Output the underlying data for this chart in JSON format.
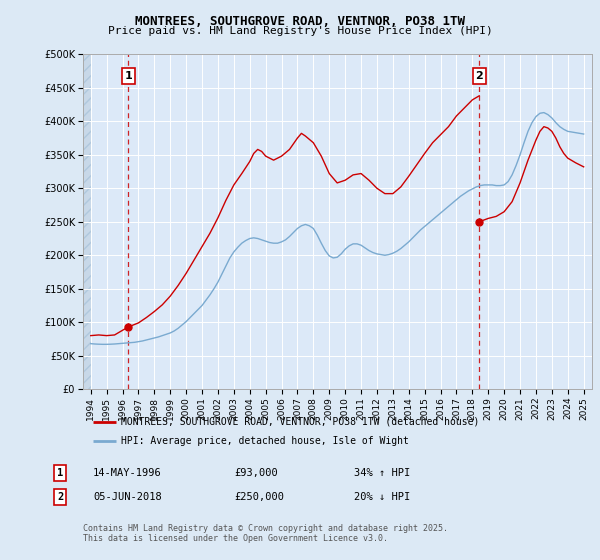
{
  "title1": "MONTREES, SOUTHGROVE ROAD, VENTNOR, PO38 1TW",
  "title2": "Price paid vs. HM Land Registry's House Price Index (HPI)",
  "legend1": "MONTREES, SOUTHGROVE ROAD, VENTNOR, PO38 1TW (detached house)",
  "legend2": "HPI: Average price, detached house, Isle of Wight",
  "footnote": "Contains HM Land Registry data © Crown copyright and database right 2025.\nThis data is licensed under the Open Government Licence v3.0.",
  "sale1_date": "14-MAY-1996",
  "sale1_price": "£93,000",
  "sale1_hpi": "34% ↑ HPI",
  "sale2_date": "05-JUN-2018",
  "sale2_price": "£250,000",
  "sale2_hpi": "20% ↓ HPI",
  "sale1_x": 1996.37,
  "sale1_y": 93000,
  "sale2_x": 2018.43,
  "sale2_y": 250000,
  "xmin": 1993.5,
  "xmax": 2025.5,
  "ymin": 0,
  "ymax": 500000,
  "yticks": [
    0,
    50000,
    100000,
    150000,
    200000,
    250000,
    300000,
    350000,
    400000,
    450000,
    500000
  ],
  "ytick_labels": [
    "£0",
    "£50K",
    "£100K",
    "£150K",
    "£200K",
    "£250K",
    "£300K",
    "£350K",
    "£400K",
    "£450K",
    "£500K"
  ],
  "bg_color": "#dce9f5",
  "plot_bg_color": "#dce9f8",
  "hatch_color": "#c0d4e8",
  "red_color": "#cc0000",
  "blue_color": "#7aaad0",
  "grid_color": "#ffffff",
  "hpi_data": [
    [
      1994.0,
      68000
    ],
    [
      1994.25,
      67500
    ],
    [
      1994.5,
      67200
    ],
    [
      1994.75,
      67000
    ],
    [
      1995.0,
      67000
    ],
    [
      1995.25,
      67200
    ],
    [
      1995.5,
      67500
    ],
    [
      1995.75,
      68000
    ],
    [
      1996.0,
      68500
    ],
    [
      1996.25,
      69000
    ],
    [
      1996.5,
      69500
    ],
    [
      1996.75,
      70000
    ],
    [
      1997.0,
      71000
    ],
    [
      1997.25,
      72000
    ],
    [
      1997.5,
      73500
    ],
    [
      1997.75,
      75000
    ],
    [
      1998.0,
      76500
    ],
    [
      1998.25,
      78000
    ],
    [
      1998.5,
      80000
    ],
    [
      1998.75,
      82000
    ],
    [
      1999.0,
      84000
    ],
    [
      1999.25,
      87000
    ],
    [
      1999.5,
      91000
    ],
    [
      1999.75,
      96000
    ],
    [
      2000.0,
      101000
    ],
    [
      2000.25,
      107000
    ],
    [
      2000.5,
      113000
    ],
    [
      2000.75,
      119000
    ],
    [
      2001.0,
      125000
    ],
    [
      2001.25,
      133000
    ],
    [
      2001.5,
      141000
    ],
    [
      2001.75,
      150000
    ],
    [
      2002.0,
      160000
    ],
    [
      2002.25,
      172000
    ],
    [
      2002.5,
      184000
    ],
    [
      2002.75,
      196000
    ],
    [
      2003.0,
      205000
    ],
    [
      2003.25,
      212000
    ],
    [
      2003.5,
      218000
    ],
    [
      2003.75,
      222000
    ],
    [
      2004.0,
      225000
    ],
    [
      2004.25,
      226000
    ],
    [
      2004.5,
      225000
    ],
    [
      2004.75,
      223000
    ],
    [
      2005.0,
      221000
    ],
    [
      2005.25,
      219000
    ],
    [
      2005.5,
      218000
    ],
    [
      2005.75,
      218000
    ],
    [
      2006.0,
      220000
    ],
    [
      2006.25,
      223000
    ],
    [
      2006.5,
      228000
    ],
    [
      2006.75,
      234000
    ],
    [
      2007.0,
      240000
    ],
    [
      2007.25,
      244000
    ],
    [
      2007.5,
      246000
    ],
    [
      2007.75,
      244000
    ],
    [
      2008.0,
      240000
    ],
    [
      2008.25,
      230000
    ],
    [
      2008.5,
      218000
    ],
    [
      2008.75,
      207000
    ],
    [
      2009.0,
      199000
    ],
    [
      2009.25,
      196000
    ],
    [
      2009.5,
      197000
    ],
    [
      2009.75,
      202000
    ],
    [
      2010.0,
      209000
    ],
    [
      2010.25,
      214000
    ],
    [
      2010.5,
      217000
    ],
    [
      2010.75,
      217000
    ],
    [
      2011.0,
      215000
    ],
    [
      2011.25,
      211000
    ],
    [
      2011.5,
      207000
    ],
    [
      2011.75,
      204000
    ],
    [
      2012.0,
      202000
    ],
    [
      2012.25,
      201000
    ],
    [
      2012.5,
      200000
    ],
    [
      2012.75,
      201000
    ],
    [
      2013.0,
      203000
    ],
    [
      2013.25,
      206000
    ],
    [
      2013.5,
      210000
    ],
    [
      2013.75,
      215000
    ],
    [
      2014.0,
      220000
    ],
    [
      2014.25,
      226000
    ],
    [
      2014.5,
      232000
    ],
    [
      2014.75,
      238000
    ],
    [
      2015.0,
      243000
    ],
    [
      2015.25,
      248000
    ],
    [
      2015.5,
      253000
    ],
    [
      2015.75,
      258000
    ],
    [
      2016.0,
      263000
    ],
    [
      2016.25,
      268000
    ],
    [
      2016.5,
      273000
    ],
    [
      2016.75,
      278000
    ],
    [
      2017.0,
      283000
    ],
    [
      2017.25,
      288000
    ],
    [
      2017.5,
      292000
    ],
    [
      2017.75,
      296000
    ],
    [
      2018.0,
      299000
    ],
    [
      2018.25,
      302000
    ],
    [
      2018.5,
      304000
    ],
    [
      2018.75,
      305000
    ],
    [
      2019.0,
      305000
    ],
    [
      2019.25,
      305000
    ],
    [
      2019.5,
      304000
    ],
    [
      2019.75,
      304000
    ],
    [
      2020.0,
      305000
    ],
    [
      2020.25,
      310000
    ],
    [
      2020.5,
      320000
    ],
    [
      2020.75,
      334000
    ],
    [
      2021.0,
      350000
    ],
    [
      2021.25,
      368000
    ],
    [
      2021.5,
      385000
    ],
    [
      2021.75,
      398000
    ],
    [
      2022.0,
      407000
    ],
    [
      2022.25,
      412000
    ],
    [
      2022.5,
      413000
    ],
    [
      2022.75,
      410000
    ],
    [
      2023.0,
      405000
    ],
    [
      2023.25,
      398000
    ],
    [
      2023.5,
      392000
    ],
    [
      2023.75,
      388000
    ],
    [
      2024.0,
      385000
    ],
    [
      2024.25,
      384000
    ],
    [
      2024.5,
      383000
    ],
    [
      2024.75,
      382000
    ],
    [
      2025.0,
      381000
    ]
  ],
  "price_data_seg1": [
    [
      1994.0,
      80000
    ],
    [
      1994.5,
      81000
    ],
    [
      1995.0,
      80000
    ],
    [
      1995.5,
      81000
    ],
    [
      1996.0,
      88000
    ],
    [
      1996.37,
      93000
    ]
  ],
  "price_data_seg2": [
    [
      1996.37,
      93000
    ],
    [
      1997.0,
      99000
    ],
    [
      1997.5,
      107000
    ],
    [
      1998.0,
      116000
    ],
    [
      1998.5,
      126000
    ],
    [
      1999.0,
      139000
    ],
    [
      1999.5,
      155000
    ],
    [
      2000.0,
      173000
    ],
    [
      2000.5,
      193000
    ],
    [
      2001.0,
      213000
    ],
    [
      2001.5,
      233000
    ],
    [
      2002.0,
      256000
    ],
    [
      2002.5,
      282000
    ],
    [
      2003.0,
      305000
    ],
    [
      2003.5,
      322000
    ],
    [
      2004.0,
      340000
    ],
    [
      2004.25,
      352000
    ],
    [
      2004.5,
      358000
    ],
    [
      2004.75,
      355000
    ],
    [
      2005.0,
      348000
    ],
    [
      2005.5,
      342000
    ],
    [
      2006.0,
      348000
    ],
    [
      2006.5,
      358000
    ],
    [
      2007.0,
      375000
    ],
    [
      2007.25,
      382000
    ],
    [
      2007.5,
      378000
    ],
    [
      2008.0,
      368000
    ],
    [
      2008.5,
      348000
    ],
    [
      2009.0,
      322000
    ],
    [
      2009.5,
      308000
    ],
    [
      2010.0,
      312000
    ],
    [
      2010.5,
      320000
    ],
    [
      2011.0,
      322000
    ],
    [
      2011.5,
      312000
    ],
    [
      2012.0,
      300000
    ],
    [
      2012.5,
      292000
    ],
    [
      2013.0,
      292000
    ],
    [
      2013.5,
      302000
    ],
    [
      2014.0,
      318000
    ],
    [
      2014.5,
      335000
    ],
    [
      2015.0,
      352000
    ],
    [
      2015.5,
      368000
    ],
    [
      2016.0,
      380000
    ],
    [
      2016.5,
      392000
    ],
    [
      2017.0,
      408000
    ],
    [
      2017.5,
      420000
    ],
    [
      2018.0,
      432000
    ],
    [
      2018.43,
      438000
    ]
  ],
  "price_data_seg3": [
    [
      2018.43,
      250000
    ],
    [
      2019.0,
      255000
    ],
    [
      2019.5,
      258000
    ],
    [
      2020.0,
      265000
    ],
    [
      2020.5,
      280000
    ],
    [
      2021.0,
      308000
    ],
    [
      2021.5,
      342000
    ],
    [
      2022.0,
      372000
    ],
    [
      2022.25,
      385000
    ],
    [
      2022.5,
      392000
    ],
    [
      2022.75,
      390000
    ],
    [
      2023.0,
      385000
    ],
    [
      2023.25,
      375000
    ],
    [
      2023.5,
      362000
    ],
    [
      2023.75,
      352000
    ],
    [
      2024.0,
      345000
    ],
    [
      2024.5,
      338000
    ],
    [
      2025.0,
      332000
    ]
  ]
}
